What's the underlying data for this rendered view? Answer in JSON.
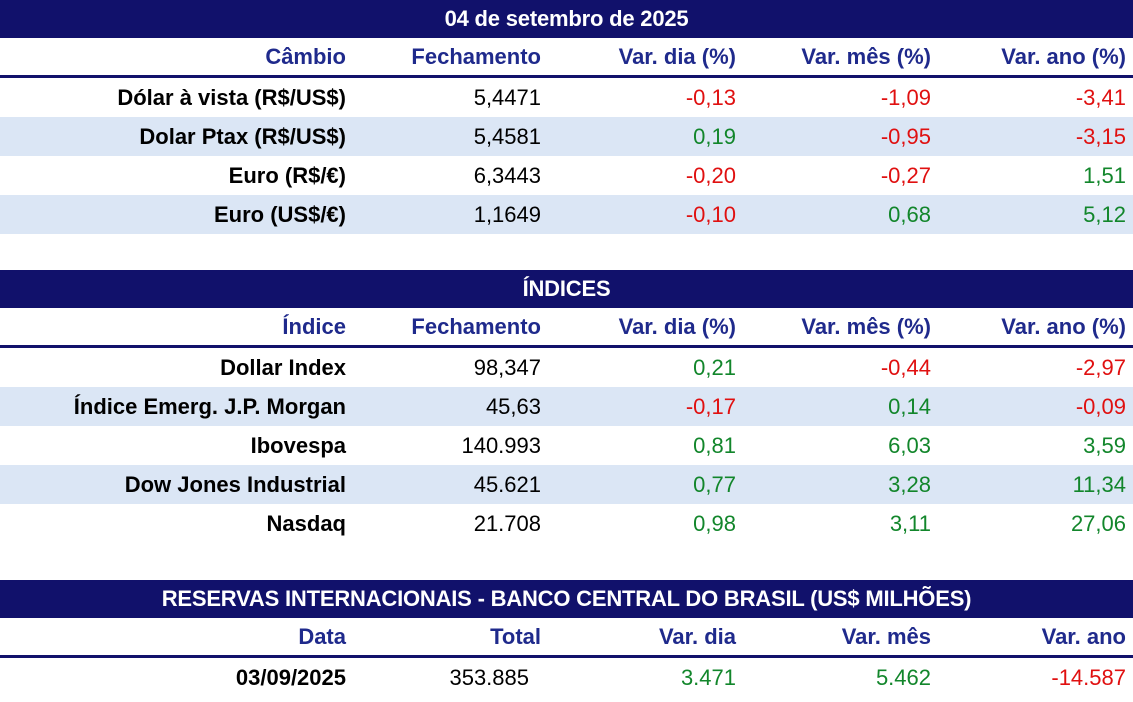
{
  "cambio": {
    "title": "04 de setembro de 2025",
    "headers": [
      "Câmbio",
      "Fechamento",
      "Var. dia (%)",
      "Var. mês (%)",
      "Var. ano (%)"
    ],
    "rows": [
      [
        "Dólar à vista (R$/US$)",
        "5,4471",
        "-0,13",
        "-1,09",
        "-3,41"
      ],
      [
        "Dolar Ptax (R$/US$)",
        "5,4581",
        "0,19",
        "-0,95",
        "-3,15"
      ],
      [
        "Euro (R$/€)",
        "6,3443",
        "-0,20",
        "-0,27",
        "1,51"
      ],
      [
        "Euro (US$/€)",
        "1,1649",
        "-0,10",
        "0,68",
        "5,12"
      ]
    ]
  },
  "indices": {
    "title": "ÍNDICES",
    "headers": [
      "Índice",
      "Fechamento",
      "Var. dia (%)",
      "Var. mês (%)",
      "Var. ano (%)"
    ],
    "rows": [
      [
        "Dollar Index",
        "98,347",
        "0,21",
        "-0,44",
        "-2,97"
      ],
      [
        "Índice Emerg. J.P. Morgan",
        "45,63",
        "-0,17",
        "0,14",
        "-0,09"
      ],
      [
        "Ibovespa",
        "140.993",
        "0,81",
        "6,03",
        "3,59"
      ],
      [
        "Dow Jones Industrial",
        "45.621",
        "0,77",
        "3,28",
        "11,34"
      ],
      [
        "Nasdaq",
        "21.708",
        "0,98",
        "3,11",
        "27,06"
      ]
    ]
  },
  "reservas": {
    "title": "RESERVAS INTERNACIONAIS - BANCO CENTRAL DO BRASIL (US$ MILHÕES)",
    "headers": [
      "Data",
      "Total",
      "Var. dia",
      "Var. mês",
      "Var. ano"
    ],
    "rows": [
      [
        "03/09/2025",
        "353.885",
        "3.471",
        "5.462",
        "-14.587"
      ]
    ]
  },
  "colors": {
    "header_bg": "#11116b",
    "header_text": "#1f2a8c",
    "alt_row": "#dbe6f5",
    "positive": "#12862b",
    "negative": "#e01010"
  }
}
